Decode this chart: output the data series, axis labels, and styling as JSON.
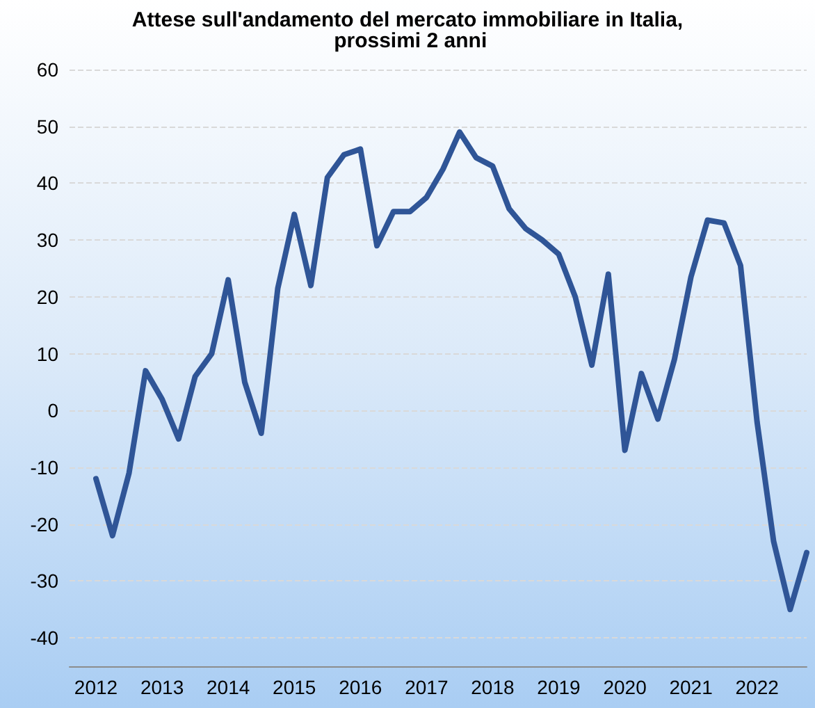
{
  "chart_data": {
    "type": "line",
    "title": "Attese sull'andamento del mercato immobiliare in Italia, prossimi 2 anni",
    "x": [
      2012,
      2012.25,
      2012.5,
      2012.75,
      2013,
      2013.25,
      2013.5,
      2013.75,
      2014,
      2014.25,
      2014.5,
      2014.75,
      2015,
      2015.25,
      2015.5,
      2015.75,
      2016,
      2016.25,
      2016.5,
      2016.75,
      2017,
      2017.25,
      2017.5,
      2017.75,
      2018,
      2018.25,
      2018.5,
      2018.75,
      2019,
      2019.25,
      2019.5,
      2019.75,
      2020,
      2020.25,
      2020.5,
      2020.75,
      2021,
      2021.25,
      2021.5,
      2021.75,
      2022,
      2022.25,
      2022.5,
      2022.75
    ],
    "series": [
      {
        "color": "#2f5597",
        "values": [
          -12,
          -22,
          -11,
          7,
          2,
          -5,
          6,
          10,
          23,
          5,
          -4,
          21.5,
          34.5,
          22,
          41,
          45,
          46,
          29,
          35,
          35,
          37.5,
          42.5,
          49,
          44.5,
          43,
          35.5,
          32,
          30,
          27.5,
          20,
          8,
          24,
          -7,
          6.5,
          -1.5,
          9,
          23.5,
          33.5,
          33,
          25.5,
          -2,
          -23,
          -35,
          -25
        ]
      }
    ],
    "xlim": [
      2011.6,
      2022.75
    ],
    "xticks": [
      2012,
      2013,
      2014,
      2015,
      2016,
      2017,
      2018,
      2019,
      2020,
      2021,
      2022
    ],
    "ylim": [
      -45,
      60
    ],
    "yticks": [
      -40,
      -30,
      -20,
      -10,
      0,
      10,
      20,
      30,
      40,
      50,
      60
    ],
    "grid": "y",
    "marker": "none",
    "line_style": "solid"
  }
}
